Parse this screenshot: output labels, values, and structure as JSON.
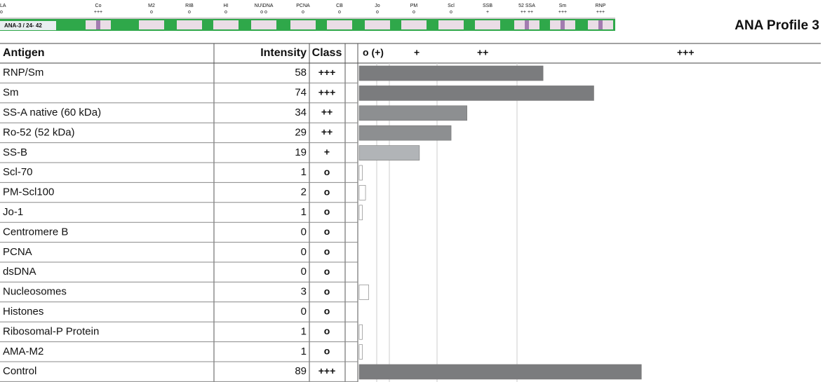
{
  "title": "ANA Profile 3",
  "strip": {
    "label": "ANA-3 / 24- 42",
    "bands": [
      {
        "name": "LA",
        "mark": "o"
      },
      {
        "name": "Co",
        "mark": "+++"
      },
      {
        "name": "M2",
        "mark": "o"
      },
      {
        "name": "RIB",
        "mark": "o"
      },
      {
        "name": "HI",
        "mark": "o"
      },
      {
        "name": "NU\\DNA",
        "mark": "o  o"
      },
      {
        "name": "PCNA",
        "mark": "o"
      },
      {
        "name": "CB",
        "mark": "o"
      },
      {
        "name": "Jo",
        "mark": "o"
      },
      {
        "name": "PM",
        "mark": "o"
      },
      {
        "name": "Scl",
        "mark": "o"
      },
      {
        "name": "SSB",
        "mark": "+"
      },
      {
        "name": "52 SSA",
        "mark": "++  ++"
      },
      {
        "name": "Sm",
        "mark": "+++"
      },
      {
        "name": "RNP",
        "mark": "+++"
      }
    ]
  },
  "table": {
    "headers": [
      "Antigen",
      "Intensity",
      "Class"
    ],
    "scale": [
      "o (+)",
      "+",
      "++",
      "+++"
    ],
    "rows": [
      {
        "antigen": "RNP/Sm",
        "intensity": 58,
        "class": "+++",
        "color": "#7b7c7e"
      },
      {
        "antigen": "Sm",
        "intensity": 74,
        "class": "+++",
        "color": "#7b7c7e"
      },
      {
        "antigen": "SS-A native (60 kDa)",
        "intensity": 34,
        "class": "++",
        "color": "#8d8f91"
      },
      {
        "antigen": "Ro-52 (52 kDa)",
        "intensity": 29,
        "class": "++",
        "color": "#8d8f91"
      },
      {
        "antigen": "SS-B",
        "intensity": 19,
        "class": "+",
        "color": "#b1b4b7"
      },
      {
        "antigen": "Scl-70",
        "intensity": 1,
        "class": "o",
        "color": "#ffffff"
      },
      {
        "antigen": "PM-Scl100",
        "intensity": 2,
        "class": "o",
        "color": "#ffffff"
      },
      {
        "antigen": "Jo-1",
        "intensity": 1,
        "class": "o",
        "color": "#ffffff"
      },
      {
        "antigen": "Centromere B",
        "intensity": 0,
        "class": "o",
        "color": "#ffffff"
      },
      {
        "antigen": "PCNA",
        "intensity": 0,
        "class": "o",
        "color": "#ffffff"
      },
      {
        "antigen": "dsDNA",
        "intensity": 0,
        "class": "o",
        "color": "#ffffff"
      },
      {
        "antigen": "Nucleosomes",
        "intensity": 3,
        "class": "o",
        "color": "#ffffff"
      },
      {
        "antigen": "Histones",
        "intensity": 0,
        "class": "o",
        "color": "#ffffff"
      },
      {
        "antigen": "Ribosomal-P Protein",
        "intensity": 1,
        "class": "o",
        "color": "#ffffff"
      },
      {
        "antigen": "AMA-M2",
        "intensity": 1,
        "class": "o",
        "color": "#ffffff"
      },
      {
        "antigen": "Control",
        "intensity": 89,
        "class": "+++",
        "color": "#7b7c7e"
      }
    ]
  }
}
